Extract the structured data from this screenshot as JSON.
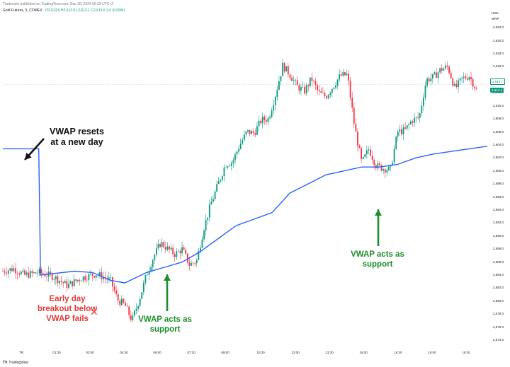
{
  "header": {
    "publish_line": "Tradeciety published on TradingView.com, Sep 26, 2024 05:39 UTC+2",
    "symbol": "Gold Futures, 5, COMEX",
    "ohlc": "O2,613.6 H2,613.6 L2,612.1 C2,613.6 3.0 (0.09%)"
  },
  "price_scale": {
    "currency": "USD",
    "label": "WRP",
    "ticks": [
      "2,622.0",
      "2,620.0",
      "2,618.0",
      "2,616.0",
      "2,614.0",
      "2,612.0",
      "2,610.0",
      "2,608.0",
      "2,606.0",
      "2,604.0",
      "2,602.0",
      "2,600.0",
      "2,598.0",
      "2,596.0",
      "2,594.0",
      "2,592.0",
      "2,590.0",
      "2,588.0",
      "2,586.0",
      "2,584.0",
      "2,582.0",
      "2,580.0",
      "2,578.0",
      "2,576.0",
      "2,574.0"
    ],
    "tag_upper": "2,613.7",
    "tag_current": "2,612.4"
  },
  "time_axis": {
    "ticks": [
      "TR",
      "01:30",
      "03:00",
      "04:30",
      "06:00",
      "07:30",
      "09:00",
      "10:30",
      "12:00",
      "13:30",
      "15:00",
      "16:30",
      "18:00",
      "19:30"
    ]
  },
  "annotations": {
    "vwap_reset": "VWAP resets\nat a new day",
    "early_fail": "Early day\nbreakout below\nVWAP fails",
    "support_1": "VWAP acts as\nsupport",
    "support_2": "VWAP acts as\nsupport"
  },
  "footer": {
    "logo": "TV",
    "brand": "TradingView"
  },
  "colors": {
    "up": "#089981",
    "down": "#f23645",
    "vwap": "#2962ff",
    "annotation_green": "#1e8e2a",
    "annotation_red": "#e53935"
  },
  "chart_data": {
    "type": "candlestick",
    "vwap_series": [
      [
        0,
        2603.4
      ],
      [
        1,
        2603.4
      ],
      [
        1.05,
        2584.0
      ],
      [
        2,
        2584.6
      ],
      [
        2.5,
        2584.4
      ],
      [
        3,
        2583.2
      ],
      [
        3.4,
        2582.8
      ],
      [
        4,
        2584.4
      ],
      [
        4.5,
        2585.2
      ],
      [
        5,
        2586.0
      ],
      [
        5.5,
        2587.6
      ],
      [
        6,
        2589.6
      ],
      [
        6.5,
        2591.6
      ],
      [
        7,
        2592.6
      ],
      [
        7.5,
        2593.6
      ],
      [
        8,
        2596.6
      ],
      [
        8.5,
        2598.0
      ],
      [
        9,
        2599.4
      ],
      [
        9.5,
        2600.0
      ],
      [
        10,
        2600.6
      ],
      [
        10.5,
        2600.6
      ],
      [
        11,
        2601.0
      ],
      [
        11.5,
        2602.0
      ],
      [
        12,
        2602.6
      ],
      [
        12.5,
        2603.0
      ],
      [
        13,
        2603.4
      ],
      [
        13.5,
        2603.8
      ]
    ],
    "ohlc_path": [
      [
        0,
        2584.6
      ],
      [
        0.3,
        2585.0
      ],
      [
        0.6,
        2584.0
      ],
      [
        1,
        2584.4
      ],
      [
        1.4,
        2583.8
      ],
      [
        1.8,
        2582.4
      ],
      [
        2.2,
        2583.6
      ],
      [
        2.6,
        2584.2
      ],
      [
        3,
        2583.2
      ],
      [
        3.2,
        2580.2
      ],
      [
        3.4,
        2579.4
      ],
      [
        3.6,
        2577.0
      ],
      [
        3.8,
        2580.2
      ],
      [
        4,
        2584.0
      ],
      [
        4.2,
        2586.8
      ],
      [
        4.4,
        2589.0
      ],
      [
        4.6,
        2588.0
      ],
      [
        4.8,
        2587.2
      ],
      [
        5,
        2588.0
      ],
      [
        5.2,
        2585.6
      ],
      [
        5.4,
        2586.2
      ],
      [
        5.6,
        2591.2
      ],
      [
        5.8,
        2595.0
      ],
      [
        6,
        2598.0
      ],
      [
        6.2,
        2601.0
      ],
      [
        6.4,
        2601.4
      ],
      [
        6.6,
        2604.0
      ],
      [
        6.8,
        2606.0
      ],
      [
        7,
        2605.8
      ],
      [
        7.2,
        2607.8
      ],
      [
        7.4,
        2608.0
      ],
      [
        7.6,
        2611.8
      ],
      [
        7.8,
        2616.2
      ],
      [
        8,
        2614.8
      ],
      [
        8.2,
        2613.0
      ],
      [
        8.4,
        2612.2
      ],
      [
        8.6,
        2614.2
      ],
      [
        8.8,
        2612.0
      ],
      [
        9,
        2611.4
      ],
      [
        9.2,
        2613.0
      ],
      [
        9.4,
        2614.6
      ],
      [
        9.6,
        2614.8
      ],
      [
        9.8,
        2606.8
      ],
      [
        10,
        2601.2
      ],
      [
        10.2,
        2603.4
      ],
      [
        10.4,
        2600.8
      ],
      [
        10.6,
        2600.4
      ],
      [
        10.8,
        2600.2
      ],
      [
        11,
        2606.0
      ],
      [
        11.2,
        2606.2
      ],
      [
        11.4,
        2607.8
      ],
      [
        11.6,
        2608.2
      ],
      [
        11.8,
        2614.0
      ],
      [
        12,
        2614.4
      ],
      [
        12.2,
        2615.6
      ],
      [
        12.4,
        2616.0
      ],
      [
        12.6,
        2612.6
      ],
      [
        12.8,
        2614.2
      ],
      [
        13,
        2614.6
      ],
      [
        13.2,
        2612.4
      ]
    ],
    "ylim": [
      2572.6,
      2623.0
    ],
    "xlim": [
      0,
      13.5
    ]
  }
}
